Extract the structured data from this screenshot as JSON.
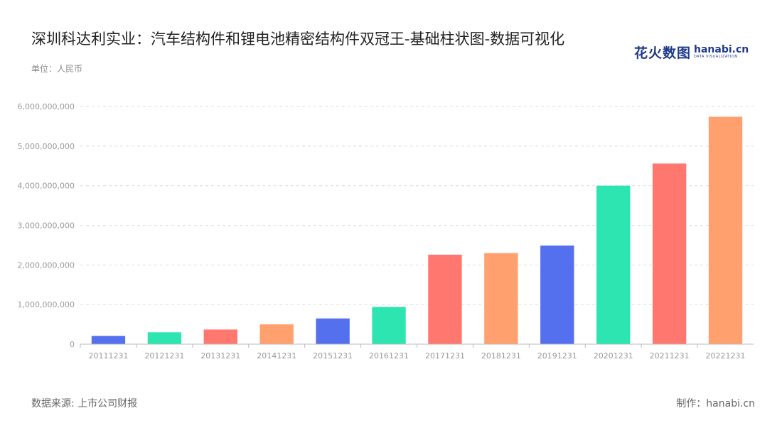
{
  "title": "深圳科达利实业：汽车结构件和锂电池精密结构件双冠王-基础柱状图-数据可视化",
  "unit_label": "单位：人民币",
  "brand": {
    "cn": "花火数图",
    "en": "hanabi.cn",
    "sub": "DATA VISUALIZATION",
    "color": "#1f3a8a"
  },
  "footer": {
    "source": "数据来源: 上市公司财报",
    "maker": "制作：hanabi.cn"
  },
  "chart_data": {
    "type": "bar",
    "title": "深圳科达利实业：汽车结构件和锂电池精密结构件双冠王-基础柱状图-数据可视化",
    "xlabel": "",
    "ylabel": "单位：人民币",
    "ylim": [
      0,
      6000000000
    ],
    "yticks": [
      0,
      1000000000,
      2000000000,
      3000000000,
      4000000000,
      5000000000,
      6000000000
    ],
    "ytick_labels": [
      "0",
      "1,000,000,000",
      "2,000,000,000",
      "3,000,000,000",
      "4,000,000,000",
      "5,000,000,000",
      "6,000,000,000"
    ],
    "grid": true,
    "categories": [
      "20111231",
      "20121231",
      "20131231",
      "20141231",
      "20151231",
      "20161231",
      "20171231",
      "20181231",
      "20191231",
      "20201231",
      "20211231",
      "20221231"
    ],
    "values": [
      210000000,
      300000000,
      370000000,
      500000000,
      650000000,
      940000000,
      2260000000,
      2300000000,
      2490000000,
      4000000000,
      4560000000,
      5740000000
    ],
    "colors": [
      "#5470ee",
      "#2de5b0",
      "#ff776e",
      "#ffa06e",
      "#5470ee",
      "#2de5b0",
      "#ff776e",
      "#ffa06e",
      "#5470ee",
      "#2de5b0",
      "#ff776e",
      "#ffa06e"
    ]
  }
}
